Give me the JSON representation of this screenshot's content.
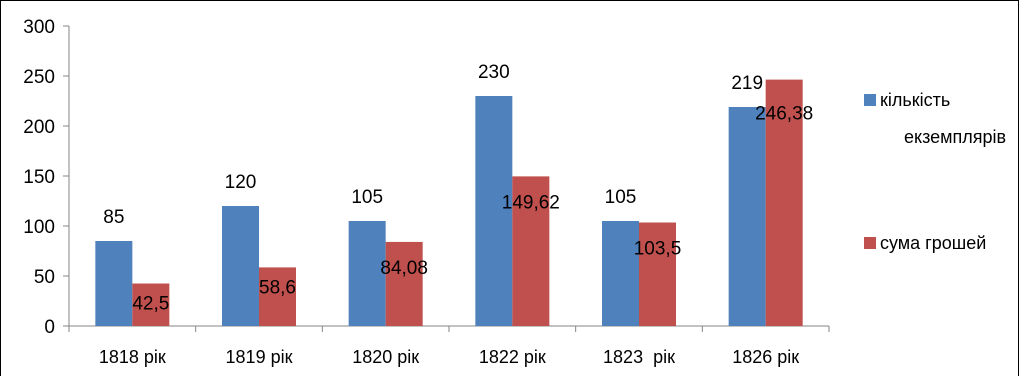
{
  "chart_data": {
    "type": "bar",
    "categories": [
      "1818 рік",
      "1819 рік",
      "1820 рік",
      "1822 рік",
      "1823  рік",
      "1826 рік"
    ],
    "series": [
      {
        "name": "кількість екземплярів",
        "legend_lines": [
          "кількість",
          "екземплярів"
        ],
        "values": [
          85,
          120,
          105,
          230,
          105,
          219
        ],
        "labels": [
          "85",
          "120",
          "105",
          "230",
          "105",
          "219"
        ],
        "color": "#4F81BD"
      },
      {
        "name": "сума грошей",
        "legend_lines": [
          "сума грошей"
        ],
        "values": [
          42.5,
          58.6,
          84.08,
          149.62,
          103.5,
          246.38
        ],
        "labels": [
          "42,5",
          "58,6",
          "84,08",
          "149,62",
          "103,5",
          "246,38"
        ],
        "color": "#C0504D"
      }
    ],
    "ylim": [
      0,
      300
    ],
    "yticks": [
      0,
      50,
      100,
      150,
      200,
      250,
      300
    ],
    "grid": false,
    "legend_position": "right"
  }
}
